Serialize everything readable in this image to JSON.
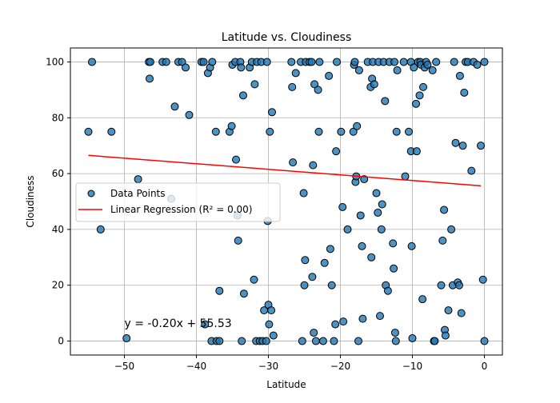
{
  "chart_data": {
    "type": "scatter",
    "title": "Latitude vs. Cloudiness",
    "xlabel": "Latitude",
    "ylabel": "Cloudiness",
    "xlim": [
      -57.5,
      2.5
    ],
    "ylim": [
      -5,
      105
    ],
    "xticks": [
      -50,
      -40,
      -30,
      -20,
      -10,
      0
    ],
    "yticks": [
      0,
      20,
      40,
      60,
      80,
      100
    ],
    "xtick_labels": [
      "−50",
      "−40",
      "−30",
      "−20",
      "−10",
      "0"
    ],
    "ytick_labels": [
      "0",
      "20",
      "40",
      "60",
      "80",
      "100"
    ],
    "grid": true,
    "legend": {
      "placement": "center-left",
      "entries": [
        {
          "label": "Data Points",
          "marker": "circle",
          "color": "#1f77b4"
        },
        {
          "label": "Linear Regression (R² = 0.00)",
          "marker": "line",
          "color": "#ff0000"
        }
      ]
    },
    "annotation": {
      "text": "y = -0.20x + 55.53",
      "x": -50,
      "y": 5,
      "color": "#ff0000"
    },
    "regression": {
      "slope": -0.2,
      "intercept": 55.53,
      "x_range": [
        -55,
        -0.5
      ],
      "color": "#ff0000"
    },
    "series": [
      {
        "name": "Data Points",
        "color": "#1f77b4",
        "points": [
          [
            -55,
            75
          ],
          [
            -54.5,
            100
          ],
          [
            -53.3,
            40
          ],
          [
            -51.8,
            75
          ],
          [
            -49.7,
            1
          ],
          [
            -48.1,
            58
          ],
          [
            -46.6,
            100
          ],
          [
            -46.4,
            100
          ],
          [
            -46.5,
            94
          ],
          [
            -44.7,
            100
          ],
          [
            -44.2,
            100
          ],
          [
            -43.5,
            51
          ],
          [
            -43,
            84
          ],
          [
            -42.5,
            100
          ],
          [
            -42,
            100
          ],
          [
            -41.5,
            98
          ],
          [
            -41,
            81
          ],
          [
            -39.3,
            100
          ],
          [
            -39,
            100
          ],
          [
            -38.8,
            6
          ],
          [
            -38.4,
            96
          ],
          [
            -38.1,
            98
          ],
          [
            -37.8,
            100
          ],
          [
            -37.9,
            0
          ],
          [
            -37.3,
            75
          ],
          [
            -37.2,
            0
          ],
          [
            -36.8,
            0
          ],
          [
            -36.8,
            18
          ],
          [
            -35.4,
            75
          ],
          [
            -35.1,
            77
          ],
          [
            -35,
            99
          ],
          [
            -34.6,
            100
          ],
          [
            -34.5,
            65
          ],
          [
            -34.3,
            45
          ],
          [
            -34.2,
            36
          ],
          [
            -33.9,
            100
          ],
          [
            -33.8,
            98
          ],
          [
            -33.7,
            0
          ],
          [
            -33.5,
            88
          ],
          [
            -33.4,
            17
          ],
          [
            -32.6,
            98
          ],
          [
            -32.3,
            100
          ],
          [
            -32,
            22
          ],
          [
            -31.9,
            92
          ],
          [
            -31.7,
            0
          ],
          [
            -31.6,
            100
          ],
          [
            -31.2,
            0
          ],
          [
            -31,
            100
          ],
          [
            -30.8,
            0
          ],
          [
            -30.6,
            11
          ],
          [
            -30.3,
            0
          ],
          [
            -30.2,
            100
          ],
          [
            -30.1,
            43
          ],
          [
            -30,
            13
          ],
          [
            -29.9,
            6
          ],
          [
            -29.8,
            75
          ],
          [
            -29.6,
            11
          ],
          [
            -29.5,
            82
          ],
          [
            -29.3,
            2
          ],
          [
            -26.8,
            100
          ],
          [
            -26.7,
            91
          ],
          [
            -26.6,
            64
          ],
          [
            -26.2,
            96
          ],
          [
            -25.5,
            100
          ],
          [
            -25.3,
            0
          ],
          [
            -25.1,
            53
          ],
          [
            -25,
            20
          ],
          [
            -24.9,
            29
          ],
          [
            -24.8,
            100
          ],
          [
            -24.3,
            100
          ],
          [
            -24,
            100
          ],
          [
            -23.9,
            23
          ],
          [
            -23.8,
            63
          ],
          [
            -23.7,
            3
          ],
          [
            -23.6,
            92
          ],
          [
            -23.4,
            0
          ],
          [
            -23.1,
            90
          ],
          [
            -23,
            75
          ],
          [
            -22.9,
            100
          ],
          [
            -22.4,
            0
          ],
          [
            -22.2,
            28
          ],
          [
            -21.6,
            95
          ],
          [
            -21.4,
            33
          ],
          [
            -21.2,
            20
          ],
          [
            -20.9,
            0
          ],
          [
            -20.7,
            6
          ],
          [
            -20.6,
            68
          ],
          [
            -20.5,
            100
          ],
          [
            -19.9,
            75
          ],
          [
            -19.7,
            48
          ],
          [
            -19.6,
            7
          ],
          [
            -19,
            40
          ],
          [
            -18.2,
            75
          ],
          [
            -18.1,
            99
          ],
          [
            -18,
            100
          ],
          [
            -17.9,
            57
          ],
          [
            -17.8,
            59
          ],
          [
            -17.7,
            77
          ],
          [
            -17.5,
            0
          ],
          [
            -17.4,
            97
          ],
          [
            -17.2,
            45
          ],
          [
            -17,
            34
          ],
          [
            -16.9,
            8
          ],
          [
            -16.7,
            58
          ],
          [
            -16.2,
            100
          ],
          [
            -15.8,
            91
          ],
          [
            -15.7,
            30
          ],
          [
            -15.6,
            94
          ],
          [
            -15.5,
            100
          ],
          [
            -15.3,
            92
          ],
          [
            -15,
            53
          ],
          [
            -14.8,
            46
          ],
          [
            -14.7,
            100
          ],
          [
            -14.5,
            9
          ],
          [
            -14.3,
            40
          ],
          [
            -14.2,
            49
          ],
          [
            -14,
            100
          ],
          [
            -13.8,
            86
          ],
          [
            -13.7,
            20
          ],
          [
            -13.4,
            18
          ],
          [
            -13.2,
            100
          ],
          [
            -12.7,
            35
          ],
          [
            -12.6,
            26
          ],
          [
            -12.5,
            100
          ],
          [
            -12.4,
            3
          ],
          [
            -12.3,
            0
          ],
          [
            -12.2,
            75
          ],
          [
            -12.1,
            97
          ],
          [
            -11.2,
            100
          ],
          [
            -11,
            59
          ],
          [
            -10.5,
            75
          ],
          [
            -10.2,
            100
          ],
          [
            -10.2,
            68
          ],
          [
            -10.1,
            34
          ],
          [
            -10,
            1
          ],
          [
            -9.8,
            98
          ],
          [
            -9.5,
            85
          ],
          [
            -9.4,
            68
          ],
          [
            -9.2,
            100
          ],
          [
            -9,
            88
          ],
          [
            -8.9,
            100
          ],
          [
            -8.8,
            99
          ],
          [
            -8.6,
            15
          ],
          [
            -8.5,
            91
          ],
          [
            -8.3,
            98
          ],
          [
            -8.1,
            100
          ],
          [
            -7.9,
            99
          ],
          [
            -7.2,
            97
          ],
          [
            -7,
            0
          ],
          [
            -6.9,
            0
          ],
          [
            -6.7,
            100
          ],
          [
            -6,
            20
          ],
          [
            -5.8,
            36
          ],
          [
            -5.6,
            47
          ],
          [
            -5.5,
            4
          ],
          [
            -5.4,
            2
          ],
          [
            -5,
            11
          ],
          [
            -4.6,
            40
          ],
          [
            -4.4,
            20
          ],
          [
            -4.2,
            100
          ],
          [
            -4,
            71
          ],
          [
            -3.7,
            21
          ],
          [
            -3.5,
            20
          ],
          [
            -3.4,
            95
          ],
          [
            -3.2,
            10
          ],
          [
            -3,
            70
          ],
          [
            -2.8,
            89
          ],
          [
            -2.6,
            100
          ],
          [
            -2.3,
            100
          ],
          [
            -1.8,
            61
          ],
          [
            -1.5,
            100
          ],
          [
            -1,
            99
          ],
          [
            -0.5,
            70
          ],
          [
            -0.2,
            22
          ],
          [
            0,
            100
          ],
          [
            0,
            0
          ]
        ]
      }
    ]
  }
}
